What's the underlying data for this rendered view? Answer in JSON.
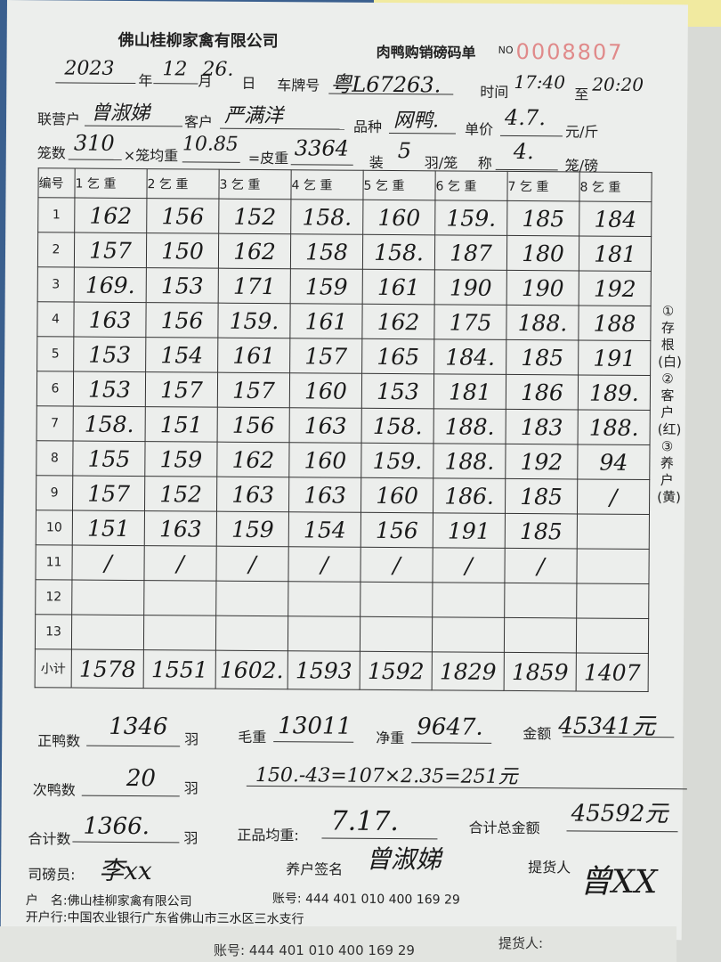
{
  "company": "佛山桂柳家禽有限公司",
  "form_title": "肉鸭购销磅码单",
  "no_label": "NO",
  "serial_no": "0008807",
  "date": {
    "year": "2023",
    "year_label": "年",
    "month": "12",
    "month_label": "月",
    "day": "26.",
    "day_label": "日"
  },
  "plate": {
    "label": "车牌号",
    "value": "粤L67263."
  },
  "time": {
    "label": "时间",
    "from": "17:40",
    "to_label": "至",
    "to": "20:20"
  },
  "partner": {
    "label": "联营户",
    "value": "曾淑娣"
  },
  "customer": {
    "label": "客户",
    "value": "严满洋"
  },
  "variety": {
    "label": "品种",
    "value": "网鸭."
  },
  "price": {
    "label": "单价",
    "value": "4.7.",
    "unit": "元/斤"
  },
  "cages": {
    "label": "笼数",
    "value": "310",
    "x": "×笼均重",
    "avg": "10.85",
    "eq": "=皮重",
    "tare": "3364"
  },
  "pack": {
    "label": "装",
    "value": "5",
    "unit": "羽/笼"
  },
  "scale": {
    "label": "称",
    "value": "4.",
    "unit": "笼/磅"
  },
  "table": {
    "index_header": "编号",
    "columns": [
      "1 乞 重",
      "2 乞 重",
      "3 乞 重",
      "4 乞 重",
      "5 乞 重",
      "6 乞 重",
      "7 乞 重",
      "8 乞 重"
    ],
    "rows": [
      {
        "n": "1",
        "v": [
          "162",
          "156",
          "152",
          "158.",
          "160",
          "159.",
          "185",
          "184"
        ]
      },
      {
        "n": "2",
        "v": [
          "157",
          "150",
          "162",
          "158",
          "158.",
          "187",
          "180",
          "181"
        ]
      },
      {
        "n": "3",
        "v": [
          "169.",
          "153",
          "171",
          "159",
          "161",
          "190",
          "190",
          "192"
        ]
      },
      {
        "n": "4",
        "v": [
          "163",
          "156",
          "159.",
          "161",
          "162",
          "175",
          "188.",
          "188"
        ]
      },
      {
        "n": "5",
        "v": [
          "153",
          "154",
          "161",
          "157",
          "165",
          "184.",
          "185",
          "191"
        ]
      },
      {
        "n": "6",
        "v": [
          "153",
          "157",
          "157",
          "160",
          "153",
          "181",
          "186",
          "189."
        ]
      },
      {
        "n": "7",
        "v": [
          "158.",
          "151",
          "156",
          "163",
          "158.",
          "188.",
          "183",
          "188."
        ]
      },
      {
        "n": "8",
        "v": [
          "155",
          "159",
          "162",
          "160",
          "159.",
          "188.",
          "192",
          "94"
        ]
      },
      {
        "n": "9",
        "v": [
          "157",
          "152",
          "163",
          "163",
          "160",
          "186.",
          "185",
          "/"
        ]
      },
      {
        "n": "10",
        "v": [
          "151",
          "163",
          "159",
          "154",
          "156",
          "191",
          "185",
          ""
        ]
      },
      {
        "n": "11",
        "v": [
          "/",
          "/",
          "/",
          "/",
          "/",
          "/",
          "/",
          ""
        ]
      },
      {
        "n": "12",
        "v": [
          "",
          "",
          "",
          "",
          "",
          "",
          "",
          ""
        ]
      },
      {
        "n": "13",
        "v": [
          "",
          "",
          "",
          "",
          "",
          "",
          "",
          ""
        ]
      }
    ],
    "subtotal_label": "小计",
    "subtotals": [
      "1578",
      "1551",
      "1602.",
      "1593",
      "1592",
      "1829",
      "1859",
      "1407"
    ]
  },
  "copies": "①存根(白) ②客户(红) ③养户(黄)",
  "summary": {
    "good_label": "正鸭数",
    "good": "1346",
    "good_unit": "羽",
    "gross_label": "毛重",
    "gross": "13011",
    "net_label": "净重",
    "net": "9647.",
    "amount_label": "金额",
    "amount": "45341元",
    "bad_label": "次鸭数",
    "bad": "20",
    "bad_unit": "羽",
    "bad_calc": "150.-43=107×2.35=251元",
    "total_label": "合计数",
    "total": "1366.",
    "total_unit": "羽",
    "avg_label": "正品均重:",
    "avg": "7.17.",
    "grand_label": "合计总金额",
    "grand": "45592元"
  },
  "signatures": {
    "weigher_label": "司磅员:",
    "weigher": "李xx",
    "farmer_label": "养户签名",
    "farmer": "曾淑娣",
    "pickup_label": "提货人",
    "pickup": "曾XX"
  },
  "bank": {
    "name_label": "户　名:",
    "name": "佛山桂柳家禽有限公司",
    "account_label": "账号:",
    "account": "444 401 010 400 169 29",
    "branch_label": "开户行:",
    "branch": "中国农业银行广东省佛山市三水区三水支行"
  },
  "under_sheet": {
    "account": "账号: 444 401 010 400 169 29",
    "pickup": "提货人:"
  }
}
